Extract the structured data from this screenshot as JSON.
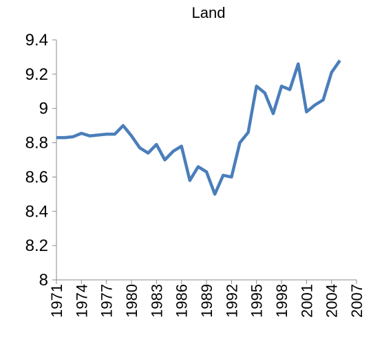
{
  "chart_data": {
    "type": "line",
    "title": "Land",
    "x": [
      1971,
      1972,
      1973,
      1974,
      1975,
      1976,
      1977,
      1978,
      1979,
      1980,
      1981,
      1982,
      1983,
      1984,
      1985,
      1986,
      1987,
      1988,
      1989,
      1990,
      1991,
      1992,
      1993,
      1994,
      1995,
      1996,
      1997,
      1998,
      1999,
      2000,
      2001,
      2002,
      2003,
      2004,
      2005
    ],
    "series": [
      {
        "name": "Land",
        "color": "#4a7ebb",
        "values": [
          8.83,
          8.83,
          8.835,
          8.855,
          8.84,
          8.845,
          8.85,
          8.85,
          8.9,
          8.84,
          8.77,
          8.74,
          8.79,
          8.7,
          8.75,
          8.78,
          8.58,
          8.66,
          8.63,
          8.5,
          8.61,
          8.6,
          8.8,
          8.86,
          9.13,
          9.09,
          8.97,
          9.13,
          9.11,
          9.26,
          8.98,
          9.02,
          9.05,
          9.21,
          9.28
        ]
      }
    ],
    "xlim": [
      1971,
      2007
    ],
    "xticks": [
      1971,
      1974,
      1977,
      1980,
      1983,
      1986,
      1989,
      1992,
      1995,
      1998,
      2001,
      2004,
      2007
    ],
    "ylim": [
      8,
      9.4
    ],
    "yticks": [
      8,
      8.2,
      8.4,
      8.6,
      8.8,
      9,
      9.2,
      9.4
    ],
    "grid": false
  }
}
